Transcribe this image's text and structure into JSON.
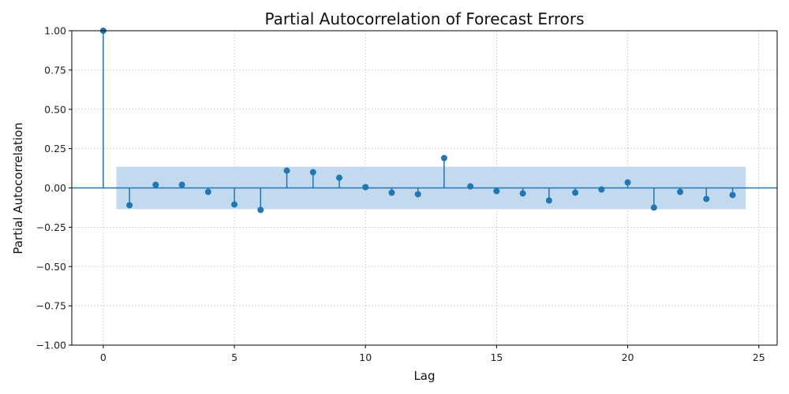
{
  "chart_data": {
    "type": "stem",
    "title": "Partial Autocorrelation of Forecast Errors",
    "xlabel": "Lag",
    "ylabel": "Partial Autocorrelation",
    "xlim": [
      -1.2,
      25.7
    ],
    "ylim": [
      -1.0,
      1.0
    ],
    "xticks": [
      0,
      5,
      10,
      15,
      20,
      25
    ],
    "yticks": [
      -1.0,
      -0.75,
      -0.5,
      -0.25,
      0.0,
      0.25,
      0.5,
      0.75,
      1.0
    ],
    "xtick_labels": [
      "0",
      "5",
      "10",
      "15",
      "20",
      "25"
    ],
    "ytick_labels": [
      "−1.00",
      "−0.75",
      "−0.50",
      "−0.25",
      "0.00",
      "0.25",
      "0.50",
      "0.75",
      "1.00"
    ],
    "grid": true,
    "confidence_band": {
      "x_range": [
        0.5,
        24.5
      ],
      "lower": -0.135,
      "upper": 0.135
    },
    "series": [
      {
        "x": [
          0,
          1,
          2,
          3,
          4,
          5,
          6,
          7,
          8,
          9,
          10,
          11,
          12,
          13,
          14,
          15,
          16,
          17,
          18,
          19,
          20,
          21,
          22,
          23,
          24
        ],
        "values": [
          1.0,
          -0.11,
          0.02,
          0.02,
          -0.025,
          -0.105,
          -0.14,
          0.11,
          0.1,
          0.065,
          0.005,
          -0.03,
          -0.04,
          0.19,
          0.01,
          -0.02,
          -0.035,
          -0.08,
          -0.03,
          -0.01,
          0.035,
          -0.125,
          -0.025,
          -0.07,
          -0.045
        ]
      }
    ],
    "colors": {
      "series": "#1f77b4",
      "band": "#c2d9ee",
      "grid": "#cccccc",
      "axis": "#000000"
    }
  }
}
